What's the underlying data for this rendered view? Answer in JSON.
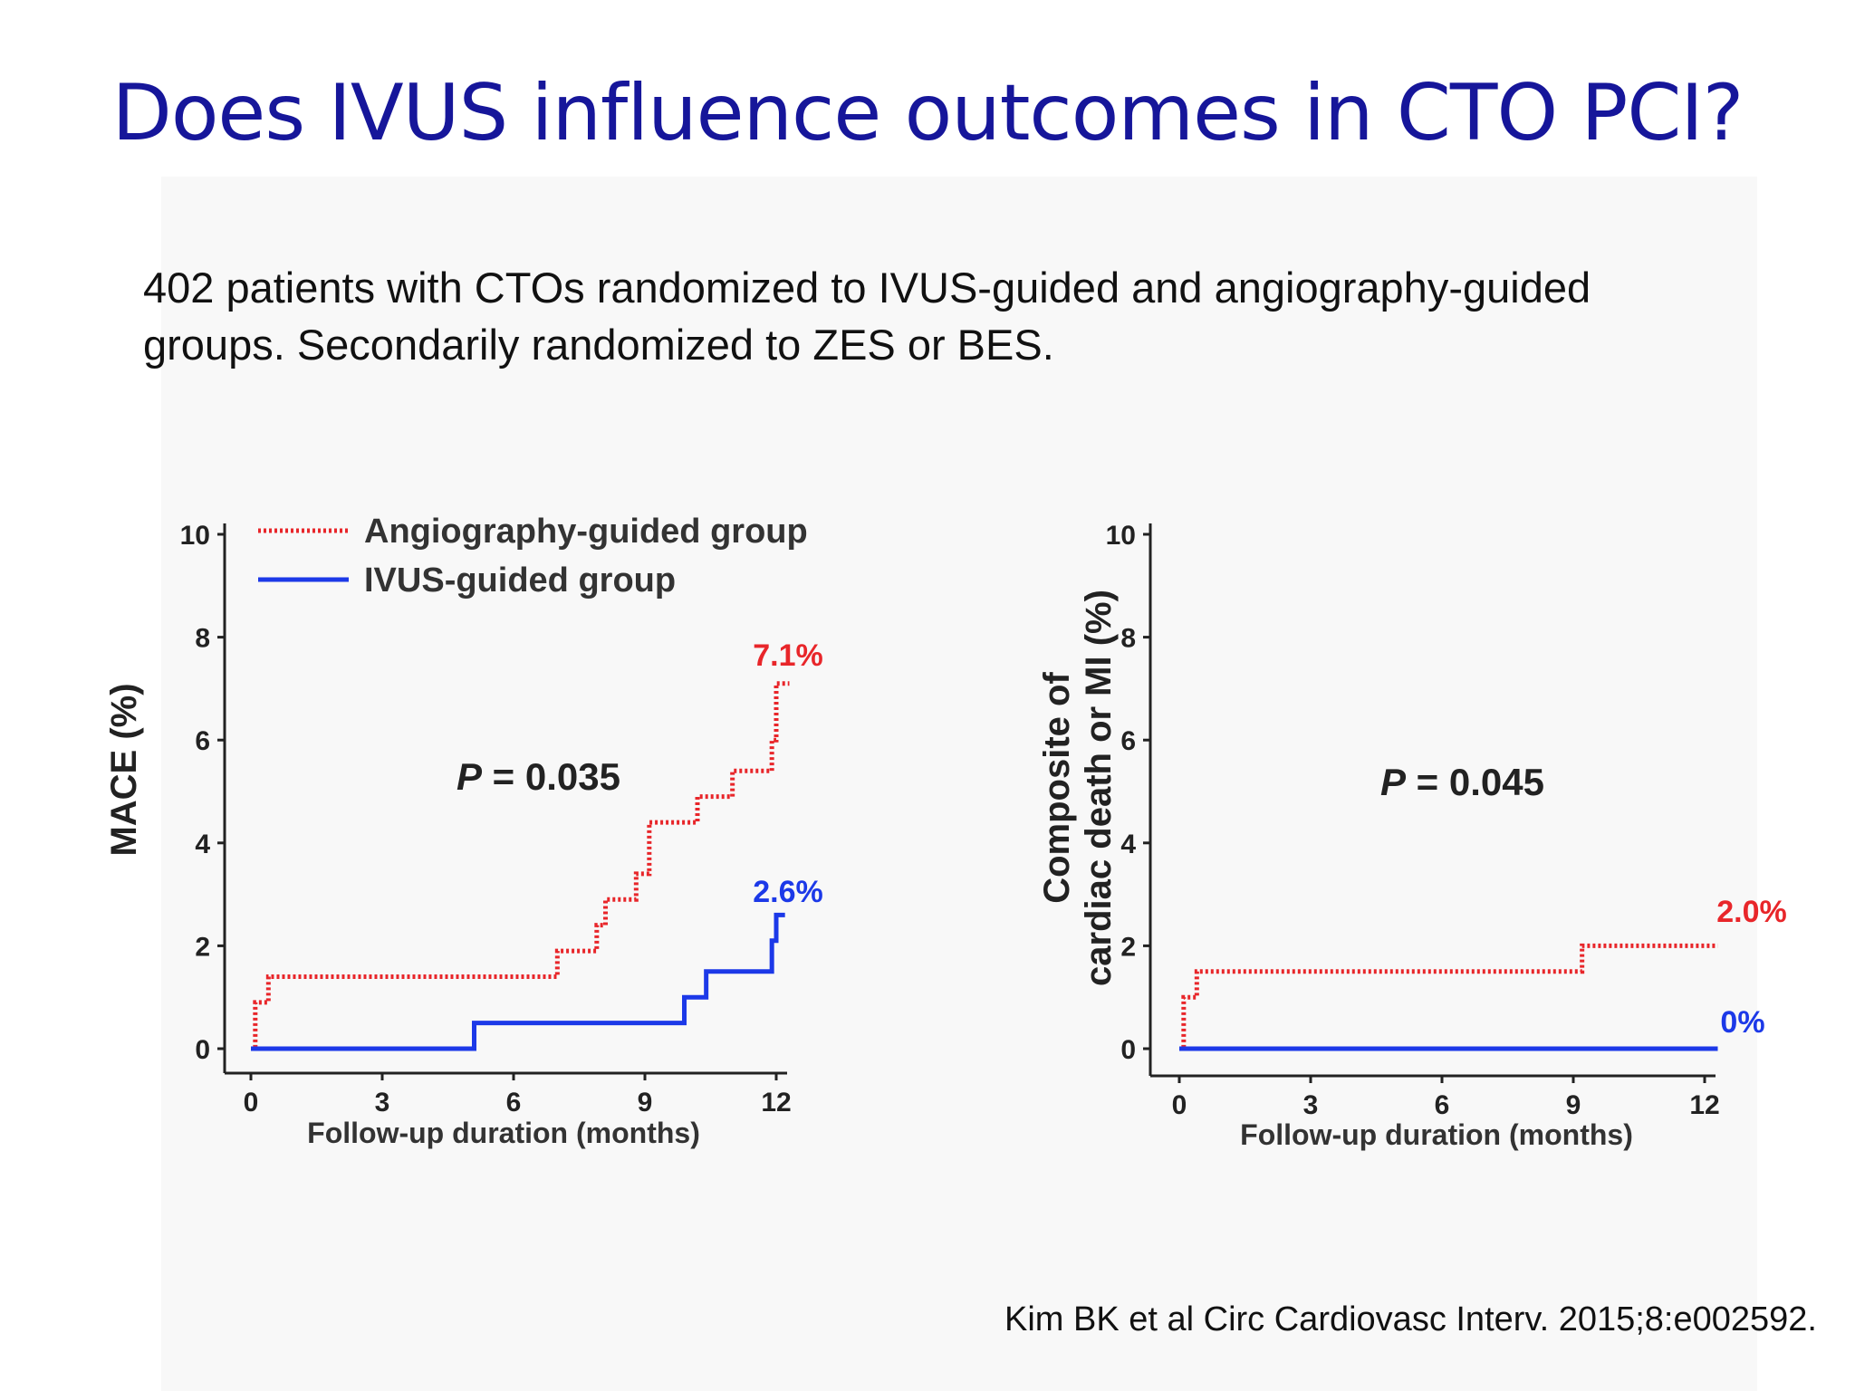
{
  "slide": {
    "title": "Does IVUS influence outcomes in CTO PCI?",
    "subtitle_line1": "402 patients with CTOs randomized to IVUS-guided and angiography-guided",
    "subtitle_line2": "groups. Secondarily randomized to ZES or BES.",
    "citation": "Kim BK et al Circ Cardiovasc Interv. 2015;8:e002592."
  },
  "colors": {
    "title": "#16169a",
    "angiography": "#e8262a",
    "ivus": "#1c39e8",
    "axis": "#222222"
  },
  "chart_data": [
    {
      "type": "line",
      "step": true,
      "title": "",
      "xlabel": "Follow-up duration (months)",
      "ylabel": "MACE (%)",
      "xlim": [
        0,
        12
      ],
      "ylim": [
        0,
        10
      ],
      "xticks": [
        "0",
        "3",
        "6",
        "9",
        "12"
      ],
      "yticks": [
        "0",
        "2",
        "4",
        "6",
        "8",
        "10"
      ],
      "legend": {
        "position": "top-left",
        "entries": [
          "Angiography-guided group",
          "IVUS-guided group"
        ]
      },
      "annotation": {
        "p_label": "P",
        "p_text": " = 0.035"
      },
      "series": [
        {
          "name": "Angiography-guided group",
          "style": "dotted",
          "end_label": "7.1%",
          "x": [
            0,
            0.1,
            0.4,
            7.0,
            7.9,
            8.1,
            8.8,
            9.1,
            10.2,
            11.0,
            11.9,
            12.0,
            12.3
          ],
          "y": [
            0,
            0.9,
            1.4,
            1.9,
            2.4,
            2.9,
            3.4,
            4.4,
            4.9,
            5.4,
            6.0,
            7.1,
            7.1
          ]
        },
        {
          "name": "IVUS-guided group",
          "style": "solid",
          "end_label": "2.6%",
          "x": [
            0,
            5.1,
            9.9,
            10.4,
            11.9,
            12.0,
            12.2
          ],
          "y": [
            0,
            0.5,
            1.0,
            1.5,
            2.1,
            2.6,
            2.6
          ]
        }
      ]
    },
    {
      "type": "line",
      "step": true,
      "title": "",
      "xlabel": "Follow-up duration (months)",
      "ylabel_line1": "Composite of",
      "ylabel_line2": "cardiac death or MI (%)",
      "xlim": [
        0,
        12
      ],
      "ylim": [
        0,
        10
      ],
      "xticks": [
        "0",
        "3",
        "6",
        "9",
        "12"
      ],
      "yticks": [
        "0",
        "2",
        "4",
        "6",
        "8",
        "10"
      ],
      "annotation": {
        "p_label": "P",
        "p_text": " = 0.045"
      },
      "series": [
        {
          "name": "Angiography-guided group",
          "style": "dotted",
          "end_label": "2.0%",
          "x": [
            0,
            0.1,
            0.4,
            9.2,
            12.3
          ],
          "y": [
            0,
            1.0,
            1.5,
            2.0,
            2.0
          ]
        },
        {
          "name": "IVUS-guided group",
          "style": "solid",
          "end_label": "0%",
          "x": [
            0,
            12.3
          ],
          "y": [
            0,
            0
          ]
        }
      ]
    }
  ]
}
